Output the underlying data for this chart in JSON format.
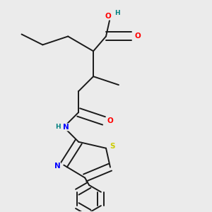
{
  "bg_color": "#ebebeb",
  "bond_color": "#1a1a1a",
  "atom_colors": {
    "O": "#ff0000",
    "N": "#0000ff",
    "S": "#cccc00",
    "H_teal": "#008080",
    "C": "#1a1a1a"
  },
  "lw": 1.4
}
